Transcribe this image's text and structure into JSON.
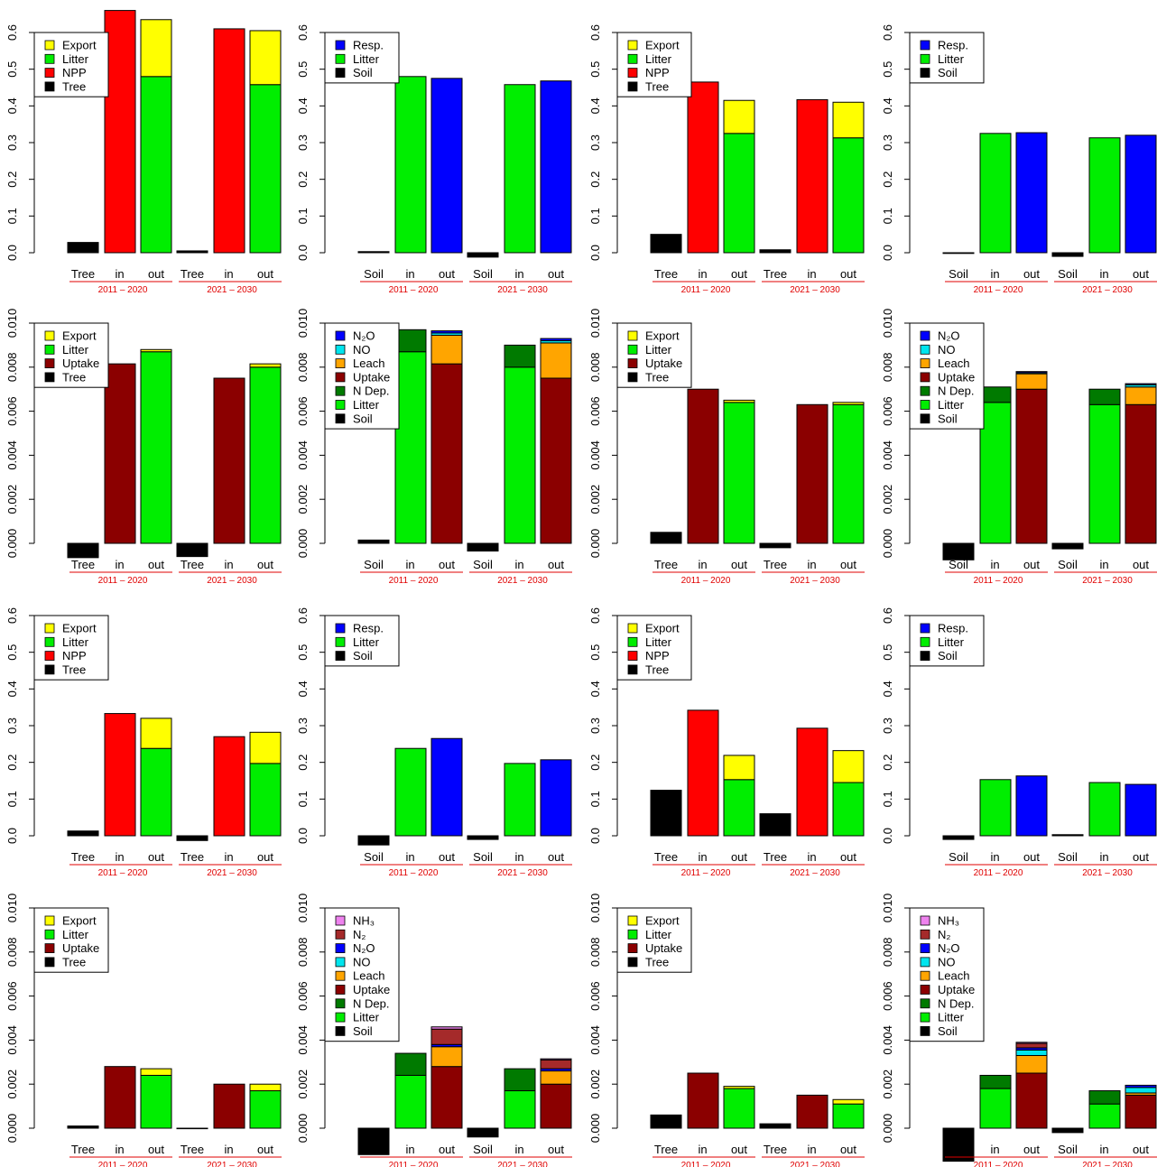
{
  "colors": {
    "Tree": "#000000",
    "Soil": "#000000",
    "NPP": "#ff0000",
    "Litter": "#00ee00",
    "Export": "#ffff00",
    "Resp.": "#0000ff",
    "Uptake": "#8b0000",
    "N Dep.": "#007a00",
    "Leach": "#ffa500",
    "NO": "#00e5ee",
    "N2O": "#0000ff",
    "N2": "#a52a2a",
    "NH3": "#ee82ee",
    "period": "#e00000"
  },
  "legend_labels": {
    "Export": "Export",
    "Litter": "Litter",
    "NPP": "NPP",
    "Tree": "Tree",
    "Resp.": "Resp.",
    "Soil": "Soil",
    "Uptake": "Uptake",
    "N Dep.": "N Dep.",
    "Leach": "Leach",
    "NO": "NO",
    "N2O": "N₂O",
    "N2": "N₂",
    "NH3": "NH₃"
  },
  "labels": {
    "tree": "Tree",
    "soil": "Soil",
    "in": "in",
    "out": "out",
    "periods": [
      "2011 – 2020",
      "2021 – 2030"
    ]
  },
  "ticks": {
    "c": [
      "0.0",
      "0.1",
      "0.2",
      "0.3",
      "0.4",
      "0.5",
      "0.6"
    ],
    "n": [
      "0.000",
      "0.002",
      "0.004",
      "0.006",
      "0.008",
      "0.010"
    ]
  },
  "chart_data": [
    {
      "type": "bar",
      "kind": "tree",
      "unit": "c",
      "ylim": [
        0,
        0.6
      ],
      "legend": [
        "Export",
        "Litter",
        "NPP",
        "Tree"
      ],
      "groups": [
        {
          "stock": 0.028,
          "in": {
            "NPP": 0.66
          },
          "out": {
            "Litter": 0.48,
            "Export": 0.155
          }
        },
        {
          "stock": 0.005,
          "in": {
            "NPP": 0.61
          },
          "out": {
            "Litter": 0.458,
            "Export": 0.147
          }
        }
      ]
    },
    {
      "type": "bar",
      "kind": "soil",
      "unit": "c",
      "ylim": [
        0,
        0.6
      ],
      "legend": [
        "Resp.",
        "Litter",
        "Soil"
      ],
      "groups": [
        {
          "stock": 0.003,
          "in": {
            "Litter": 0.48
          },
          "out": {
            "Resp.": 0.475
          }
        },
        {
          "stock": -0.012,
          "in": {
            "Litter": 0.458
          },
          "out": {
            "Resp.": 0.468
          }
        }
      ]
    },
    {
      "type": "bar",
      "kind": "tree",
      "unit": "c",
      "ylim": [
        0,
        0.6
      ],
      "legend": [
        "Export",
        "Litter",
        "NPP",
        "Tree"
      ],
      "groups": [
        {
          "stock": 0.05,
          "in": {
            "NPP": 0.465
          },
          "out": {
            "Litter": 0.325,
            "Export": 0.09
          }
        },
        {
          "stock": 0.008,
          "in": {
            "NPP": 0.417
          },
          "out": {
            "Litter": 0.313,
            "Export": 0.097
          }
        }
      ]
    },
    {
      "type": "bar",
      "kind": "soil",
      "unit": "c",
      "ylim": [
        0,
        0.6
      ],
      "legend": [
        "Resp.",
        "Litter",
        "Soil"
      ],
      "groups": [
        {
          "stock": -0.002,
          "in": {
            "Litter": 0.325
          },
          "out": {
            "Resp.": 0.327
          }
        },
        {
          "stock": -0.01,
          "in": {
            "Litter": 0.313
          },
          "out": {
            "Resp.": 0.32
          }
        }
      ]
    },
    {
      "type": "bar",
      "kind": "tree",
      "unit": "n",
      "ylim": [
        0,
        0.01
      ],
      "legend": [
        "Export",
        "Litter",
        "Uptake",
        "Tree"
      ],
      "groups": [
        {
          "stock": -0.00065,
          "in": {
            "Uptake": 0.00815
          },
          "out": {
            "Litter": 0.0087,
            "Export": 0.0001
          }
        },
        {
          "stock": -0.0006,
          "in": {
            "Uptake": 0.0075
          },
          "out": {
            "Litter": 0.008,
            "Export": 0.00015
          }
        }
      ]
    },
    {
      "type": "bar",
      "kind": "soil",
      "unit": "n",
      "ylim": [
        0,
        0.01
      ],
      "legend": [
        "N2O",
        "NO",
        "Leach",
        "Uptake",
        "N Dep.",
        "Litter",
        "Soil"
      ],
      "groups": [
        {
          "stock": 0.00015,
          "in": {
            "Litter": 0.0087,
            "N Dep.": 0.001
          },
          "out": {
            "Uptake": 0.00815,
            "Leach": 0.0013,
            "NO": 0.0001,
            "N2O": 0.0001
          }
        },
        {
          "stock": -0.00035,
          "in": {
            "Litter": 0.008,
            "N Dep.": 0.001
          },
          "out": {
            "Uptake": 0.0075,
            "Leach": 0.0016,
            "NO": 0.0001,
            "N2O": 0.0001
          }
        }
      ]
    },
    {
      "type": "bar",
      "kind": "tree",
      "unit": "n",
      "ylim": [
        0,
        0.01
      ],
      "legend": [
        "Export",
        "Litter",
        "Uptake",
        "Tree"
      ],
      "groups": [
        {
          "stock": 0.0005,
          "in": {
            "Uptake": 0.007
          },
          "out": {
            "Litter": 0.0064,
            "Export": 0.0001
          }
        },
        {
          "stock": -0.0002,
          "in": {
            "Uptake": 0.0063
          },
          "out": {
            "Litter": 0.0063,
            "Export": 0.0001
          }
        }
      ]
    },
    {
      "type": "bar",
      "kind": "soil",
      "unit": "n",
      "ylim": [
        0,
        0.01
      ],
      "legend": [
        "N2O",
        "NO",
        "Leach",
        "Uptake",
        "N Dep.",
        "Litter",
        "Soil"
      ],
      "groups": [
        {
          "stock": -0.00075,
          "in": {
            "Litter": 0.0064,
            "N Dep.": 0.0007
          },
          "out": {
            "Uptake": 0.007,
            "Leach": 0.0007,
            "NO": 5e-05,
            "N2O": 5e-05
          }
        },
        {
          "stock": -0.00025,
          "in": {
            "Litter": 0.0063,
            "N Dep.": 0.0007
          },
          "out": {
            "Uptake": 0.0063,
            "Leach": 0.0008,
            "NO": 0.0001,
            "N2O": 5e-05
          }
        }
      ]
    },
    {
      "type": "bar",
      "kind": "tree",
      "unit": "c",
      "ylim": [
        0,
        0.6
      ],
      "legend": [
        "Export",
        "Litter",
        "NPP",
        "Tree"
      ],
      "groups": [
        {
          "stock": 0.013,
          "in": {
            "NPP": 0.333
          },
          "out": {
            "Litter": 0.238,
            "Export": 0.082
          }
        },
        {
          "stock": -0.013,
          "in": {
            "NPP": 0.27
          },
          "out": {
            "Litter": 0.197,
            "Export": 0.085
          }
        }
      ]
    },
    {
      "type": "bar",
      "kind": "soil",
      "unit": "c",
      "ylim": [
        0,
        0.6
      ],
      "legend": [
        "Resp.",
        "Litter",
        "Soil"
      ],
      "groups": [
        {
          "stock": -0.025,
          "in": {
            "Litter": 0.238
          },
          "out": {
            "Resp.": 0.265
          }
        },
        {
          "stock": -0.01,
          "in": {
            "Litter": 0.197
          },
          "out": {
            "Resp.": 0.207
          }
        }
      ]
    },
    {
      "type": "bar",
      "kind": "tree",
      "unit": "c",
      "ylim": [
        0,
        0.6
      ],
      "legend": [
        "Export",
        "Litter",
        "NPP",
        "Tree"
      ],
      "groups": [
        {
          "stock": 0.124,
          "in": {
            "NPP": 0.342
          },
          "out": {
            "Litter": 0.153,
            "Export": 0.066
          }
        },
        {
          "stock": 0.06,
          "in": {
            "NPP": 0.293
          },
          "out": {
            "Litter": 0.145,
            "Export": 0.087
          }
        }
      ]
    },
    {
      "type": "bar",
      "kind": "soil",
      "unit": "c",
      "ylim": [
        0,
        0.6
      ],
      "legend": [
        "Resp.",
        "Litter",
        "Soil"
      ],
      "groups": [
        {
          "stock": -0.01,
          "in": {
            "Litter": 0.153
          },
          "out": {
            "Resp.": 0.163
          }
        },
        {
          "stock": 0.003,
          "in": {
            "Litter": 0.145
          },
          "out": {
            "Resp.": 0.14
          }
        }
      ]
    },
    {
      "type": "bar",
      "kind": "tree",
      "unit": "n",
      "ylim": [
        0,
        0.01
      ],
      "legend": [
        "Export",
        "Litter",
        "Uptake",
        "Tree"
      ],
      "groups": [
        {
          "stock": 0.0001,
          "in": {
            "Uptake": 0.0028
          },
          "out": {
            "Litter": 0.0024,
            "Export": 0.0003
          }
        },
        {
          "stock": -2e-05,
          "in": {
            "Uptake": 0.002
          },
          "out": {
            "Litter": 0.0017,
            "Export": 0.0003
          }
        }
      ]
    },
    {
      "type": "bar",
      "kind": "soil",
      "unit": "n",
      "ylim": [
        0,
        0.01
      ],
      "legend": [
        "NH3",
        "N2",
        "N2O",
        "NO",
        "Leach",
        "Uptake",
        "N Dep.",
        "Litter",
        "Soil"
      ],
      "groups": [
        {
          "stock": -0.0012,
          "in": {
            "Litter": 0.0024,
            "N Dep.": 0.001
          },
          "out": {
            "Uptake": 0.0028,
            "Leach": 0.0009,
            "N2O": 0.0001,
            "N2": 0.0007,
            "NH3": 0.0001
          }
        },
        {
          "stock": -0.0004,
          "in": {
            "Litter": 0.0017,
            "N Dep.": 0.001
          },
          "out": {
            "Uptake": 0.002,
            "Leach": 0.0006,
            "N2O": 0.0001,
            "N2": 0.0004,
            "NH3": 5e-05
          }
        }
      ]
    },
    {
      "type": "bar",
      "kind": "tree",
      "unit": "n",
      "ylim": [
        0,
        0.01
      ],
      "legend": [
        "Export",
        "Litter",
        "Uptake",
        "Tree"
      ],
      "groups": [
        {
          "stock": 0.0006,
          "in": {
            "Uptake": 0.0025
          },
          "out": {
            "Litter": 0.0018,
            "Export": 0.0001
          }
        },
        {
          "stock": 0.0002,
          "in": {
            "Uptake": 0.0015
          },
          "out": {
            "Litter": 0.0011,
            "Export": 0.0002
          }
        }
      ]
    },
    {
      "type": "bar",
      "kind": "soil",
      "unit": "n",
      "ylim": [
        0,
        0.01
      ],
      "legend": [
        "NH3",
        "N2",
        "N2O",
        "NO",
        "Leach",
        "Uptake",
        "N Dep.",
        "Litter",
        "Soil"
      ],
      "groups": [
        {
          "stock": -0.0015,
          "in": {
            "Litter": 0.0018,
            "N Dep.": 0.0006
          },
          "out": {
            "Uptake": 0.0025,
            "Leach": 0.0008,
            "NO": 0.00025,
            "N2O": 0.0001,
            "N2": 0.0002,
            "NH3": 5e-05
          }
        },
        {
          "stock": -0.0002,
          "in": {
            "Litter": 0.0011,
            "N Dep.": 0.0006
          },
          "out": {
            "Uptake": 0.0015,
            "Leach": 0.0001,
            "NO": 0.00025,
            "N2O": 0.0001
          }
        }
      ]
    }
  ]
}
